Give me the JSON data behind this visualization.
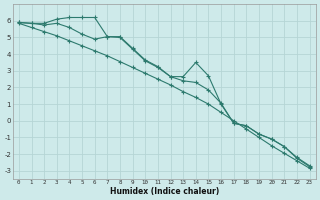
{
  "xlabel": "Humidex (Indice chaleur)",
  "x": [
    0,
    1,
    2,
    3,
    4,
    5,
    6,
    7,
    8,
    9,
    10,
    11,
    12,
    13,
    14,
    15,
    16,
    17,
    18,
    19,
    20,
    21,
    22,
    23
  ],
  "line1": [
    5.9,
    5.85,
    5.85,
    6.1,
    6.2,
    6.2,
    6.2,
    5.05,
    5.05,
    4.35,
    3.65,
    3.25,
    2.65,
    2.65,
    3.5,
    2.7,
    1.0,
    -0.15,
    -0.3,
    -0.8,
    -1.1,
    -1.55,
    -2.2,
    -2.7
  ],
  "line2": [
    5.9,
    5.85,
    5.75,
    5.85,
    5.6,
    5.2,
    4.9,
    5.05,
    5.0,
    4.3,
    3.6,
    3.2,
    2.65,
    2.4,
    2.3,
    1.85,
    1.05,
    -0.15,
    -0.3,
    -0.8,
    -1.1,
    -1.55,
    -2.25,
    -2.75
  ],
  "line3": [
    5.85,
    5.6,
    5.35,
    5.1,
    4.8,
    4.5,
    4.2,
    3.9,
    3.55,
    3.2,
    2.85,
    2.5,
    2.15,
    1.75,
    1.4,
    1.0,
    0.5,
    0.0,
    -0.5,
    -1.0,
    -1.5,
    -1.95,
    -2.4,
    -2.85
  ],
  "line_color": "#2d7a6e",
  "bg_color": "#ceeaea",
  "grid_color": "#b8d8d8",
  "ylim": [
    -3.5,
    7.0
  ],
  "xlim": [
    -0.5,
    23.5
  ],
  "yticks": [
    -3,
    -2,
    -1,
    0,
    1,
    2,
    3,
    4,
    5,
    6
  ],
  "xticks": [
    0,
    1,
    2,
    3,
    4,
    5,
    6,
    7,
    8,
    9,
    10,
    11,
    12,
    13,
    14,
    15,
    16,
    17,
    18,
    19,
    20,
    21,
    22,
    23
  ]
}
